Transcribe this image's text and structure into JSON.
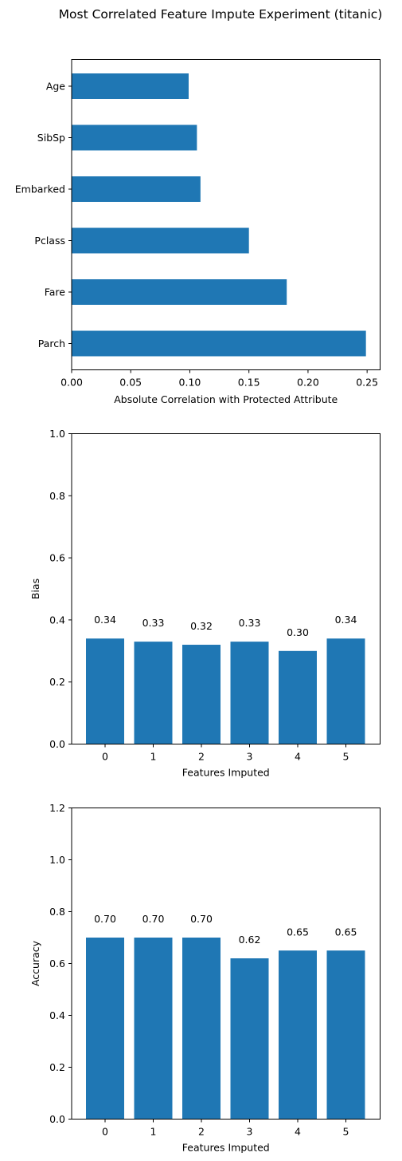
{
  "figure": {
    "suptitle": "Most Correlated Feature Impute Experiment (titanic)"
  },
  "colors": {
    "bar": "#1f77b4",
    "axis": "#000000",
    "background": "#ffffff"
  },
  "chart_data": [
    {
      "type": "bar",
      "orientation": "horizontal",
      "title": "",
      "categories": [
        "Age",
        "SibSp",
        "Embarked",
        "Pclass",
        "Fare",
        "Parch"
      ],
      "values": [
        0.099,
        0.106,
        0.109,
        0.15,
        0.182,
        0.249
      ],
      "xlabel": "Absolute Correlation with Protected Attribute",
      "ylabel": "",
      "xlim": [
        0,
        0.261
      ],
      "xticks": [
        0.0,
        0.05,
        0.1,
        0.15,
        0.2,
        0.25
      ],
      "xtick_labels": [
        "0.00",
        "0.05",
        "0.10",
        "0.15",
        "0.20",
        "0.25"
      ],
      "grid": false,
      "legend": null
    },
    {
      "type": "bar",
      "title": "",
      "categories": [
        "0",
        "1",
        "2",
        "3",
        "4",
        "5"
      ],
      "values": [
        0.34,
        0.33,
        0.32,
        0.33,
        0.3,
        0.34
      ],
      "data_labels": [
        "0.34",
        "0.33",
        "0.32",
        "0.33",
        "0.30",
        "0.34"
      ],
      "xlabel": "Features Imputed",
      "ylabel": "Bias",
      "ylim": [
        0,
        1.0
      ],
      "yticks": [
        0.0,
        0.2,
        0.4,
        0.6,
        0.8,
        1.0
      ],
      "ytick_labels": [
        "0.0",
        "0.2",
        "0.4",
        "0.6",
        "0.8",
        "1.0"
      ],
      "grid": false,
      "legend": null
    },
    {
      "type": "bar",
      "title": "",
      "categories": [
        "0",
        "1",
        "2",
        "3",
        "4",
        "5"
      ],
      "values": [
        0.7,
        0.7,
        0.7,
        0.62,
        0.65,
        0.65
      ],
      "data_labels": [
        "0.70",
        "0.70",
        "0.70",
        "0.62",
        "0.65",
        "0.65"
      ],
      "xlabel": "Features Imputed",
      "ylabel": "Accuracy",
      "ylim": [
        0,
        1.2
      ],
      "yticks": [
        0.0,
        0.2,
        0.4,
        0.6,
        0.8,
        1.0,
        1.2
      ],
      "ytick_labels": [
        "0.0",
        "0.2",
        "0.4",
        "0.6",
        "0.8",
        "1.0",
        "1.2"
      ],
      "grid": false,
      "legend": null
    }
  ]
}
